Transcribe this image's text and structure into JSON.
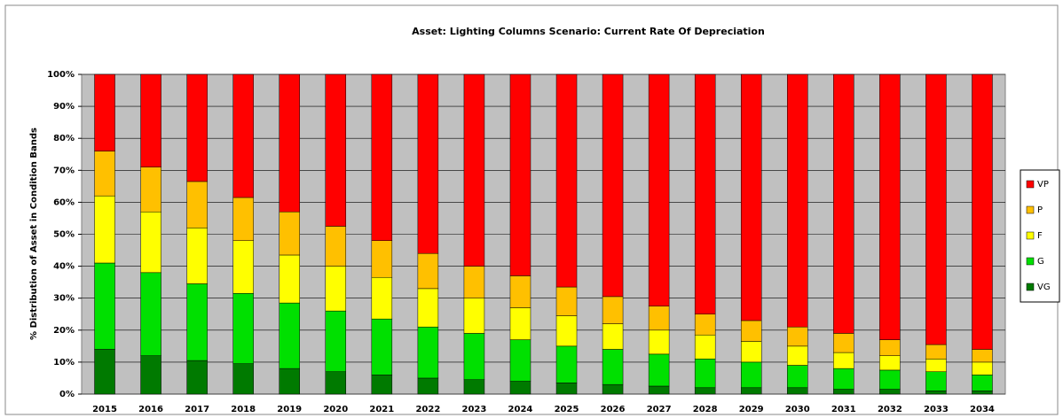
{
  "chart_data": {
    "type": "stacked_bar",
    "title": "Asset: Lighting Columns Scenario:  Current Rate Of Depreciation",
    "y_label": "% Distribution of Asset in Condition Bands",
    "categories": [
      "2015",
      "2016",
      "2017",
      "2018",
      "2019",
      "2020",
      "2021",
      "2022",
      "2023",
      "2024",
      "2025",
      "2026",
      "2027",
      "2028",
      "2029",
      "2030",
      "2031",
      "2032",
      "2033",
      "2034"
    ],
    "series": [
      {
        "name": "VG",
        "color": "#007a00",
        "values": [
          14,
          12,
          10.5,
          9.5,
          8,
          7,
          6,
          5,
          4.5,
          4,
          3.5,
          3,
          2.5,
          2,
          2,
          2,
          1.5,
          1.5,
          1,
          1
        ]
      },
      {
        "name": "G",
        "color": "#00e000",
        "values": [
          27,
          26,
          24,
          22,
          20.5,
          19,
          17.5,
          16,
          14.5,
          13,
          11.5,
          11,
          10,
          9,
          8,
          7,
          6.5,
          6,
          6,
          5
        ]
      },
      {
        "name": "F",
        "color": "#ffff00",
        "values": [
          21,
          19,
          17.5,
          16.5,
          15,
          14,
          13,
          12,
          11,
          10,
          9.5,
          8,
          7.5,
          7.5,
          6.5,
          6,
          5,
          4.5,
          4,
          4
        ]
      },
      {
        "name": "P",
        "color": "#ffc000",
        "values": [
          14,
          14,
          14.5,
          13.5,
          13.5,
          12.5,
          11.5,
          11,
          10,
          10,
          9,
          8.5,
          7.5,
          6.5,
          6.5,
          6,
          6,
          5,
          4.5,
          4
        ]
      },
      {
        "name": "VP",
        "color": "#ff0000",
        "values": [
          24,
          29,
          33.5,
          38.5,
          43,
          47.5,
          52,
          56,
          60,
          63,
          66.5,
          69.5,
          72.5,
          75,
          77,
          79,
          81,
          83,
          84.5,
          86
        ]
      }
    ],
    "ylim": [
      0,
      100
    ],
    "yticks": [
      {
        "value": 0,
        "label": "0%"
      },
      {
        "value": 10,
        "label": "10%"
      },
      {
        "value": 20,
        "label": "20%"
      },
      {
        "value": 30,
        "label": "30%"
      },
      {
        "value": 40,
        "label": "40%"
      },
      {
        "value": 50,
        "label": "50%"
      },
      {
        "value": 60,
        "label": "60%"
      },
      {
        "value": 70,
        "label": "70%"
      },
      {
        "value": 80,
        "label": "80%"
      },
      {
        "value": 90,
        "label": "90%"
      },
      {
        "value": 100,
        "label": "100%"
      }
    ],
    "grid": true,
    "legend": "right"
  }
}
